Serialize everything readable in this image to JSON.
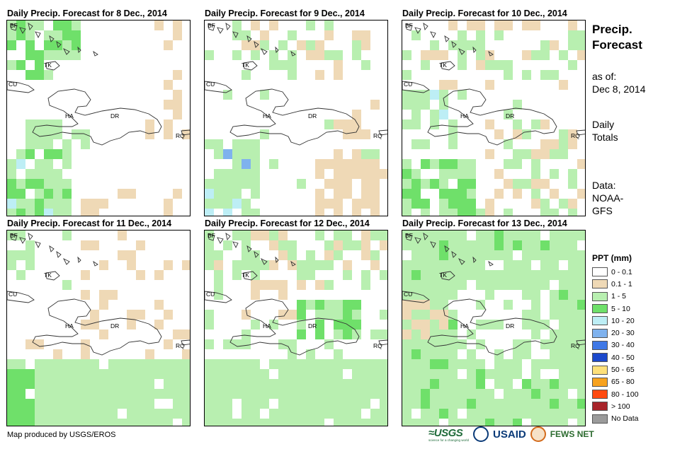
{
  "panels": [
    {
      "title": "Daily Precip. Forecast for 8 Dec., 2014",
      "pattern": "p8"
    },
    {
      "title": "Daily Precip. Forecast for 9 Dec., 2014",
      "pattern": "p9"
    },
    {
      "title": "Daily Precip. Forecast for 10 Dec., 2014",
      "pattern": "p10"
    },
    {
      "title": "Daily Precip. Forecast for 11 Dec., 2014",
      "pattern": "p11"
    },
    {
      "title": "Daily Precip. Forecast for 12 Dec., 2014",
      "pattern": "p12"
    },
    {
      "title": "Daily Precip. Forecast for 13 Dec., 2014",
      "pattern": "p13"
    }
  ],
  "map_labels": {
    "bf": "BF",
    "tk": "TK",
    "cu": "CU",
    "ha": "HA",
    "dr": "DR",
    "rq": "RQ"
  },
  "side": {
    "title_line1": "Precip.",
    "title_line2": "Forecast",
    "asof_line1": "as of:",
    "asof_line2": "Dec 8, 2014",
    "totals_line1": "Daily",
    "totals_line2": "Totals",
    "data_line1": "Data:",
    "data_line2": "NOAA-",
    "data_line3": "GFS"
  },
  "legend": {
    "title": "PPT (mm)",
    "items": [
      {
        "label": "0 - 0.1",
        "color": "#ffffff"
      },
      {
        "label": "0.1 - 1",
        "color": "#efd9b6"
      },
      {
        "label": "1 - 5",
        "color": "#b8efb0"
      },
      {
        "label": "5 - 10",
        "color": "#6fe06a"
      },
      {
        "label": "10 - 20",
        "color": "#bdeef5"
      },
      {
        "label": "20 - 30",
        "color": "#7fb2ee"
      },
      {
        "label": "30 - 40",
        "color": "#3f78e6"
      },
      {
        "label": "40 - 50",
        "color": "#1c49cc"
      },
      {
        "label": "50 - 65",
        "color": "#fde07a"
      },
      {
        "label": "65 - 80",
        "color": "#f7a21e"
      },
      {
        "label": "80 - 100",
        "color": "#ff4a10"
      },
      {
        "label": "> 100",
        "color": "#a8242a"
      },
      {
        "label": "No Data",
        "color": "#9b9b9b"
      }
    ]
  },
  "footer": {
    "credit": "Map produced by USGS/EROS",
    "usgs": "≈USGS",
    "usgs_sub": "science for a changing world",
    "usaid": "USAID",
    "fews": "FEWS NET"
  }
}
